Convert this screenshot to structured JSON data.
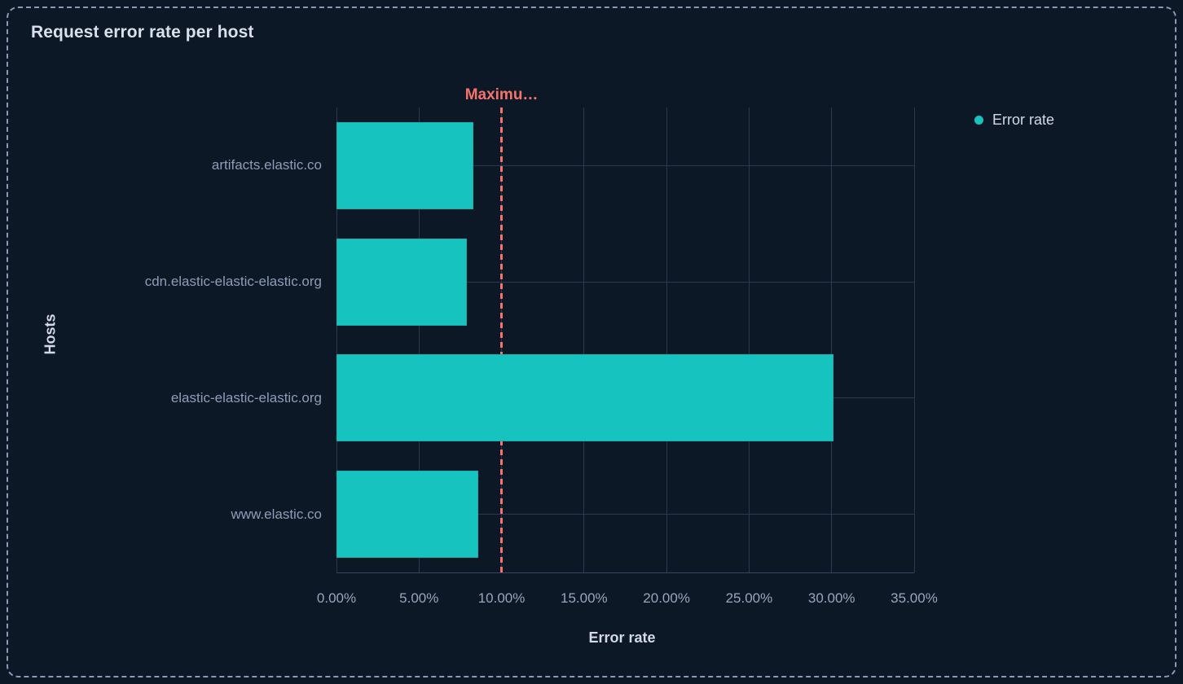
{
  "panel": {
    "title": "Request error rate per host"
  },
  "chart_data": {
    "type": "bar",
    "orientation": "horizontal",
    "title": "Request error rate per host",
    "categories": [
      "artifacts.elastic.co",
      "cdn.elastic-elastic-elastic.org",
      "elastic-elastic-elastic.org",
      "www.elastic.co"
    ],
    "series": [
      {
        "name": "Error rate",
        "color": "#17c3be",
        "values": [
          8.3,
          7.9,
          30.1,
          8.6
        ]
      }
    ],
    "xlabel": "Error rate",
    "ylabel": "Hosts",
    "xlim": [
      0,
      35
    ],
    "x_tick_step": 5,
    "x_ticks": [
      "0.00%",
      "5.00%",
      "10.00%",
      "15.00%",
      "20.00%",
      "25.00%",
      "30.00%",
      "35.00%"
    ],
    "grid": true,
    "legend": {
      "position": "top-right",
      "items": [
        {
          "label": "Error rate",
          "color": "#17c3be"
        }
      ]
    },
    "annotations": [
      {
        "type": "vline",
        "label": "Maximu…",
        "value": 10,
        "color": "#f6726a",
        "style": "dashed"
      }
    ]
  },
  "colors": {
    "background": "#0d1827",
    "panel_border": "#8a99b6",
    "bar": "#17c3be",
    "annotation": "#f6726a",
    "gridline": "#2c3750",
    "title_text": "#d9dfeb",
    "tick_text": "#99a5bd",
    "category_text": "#8e9cb6"
  }
}
